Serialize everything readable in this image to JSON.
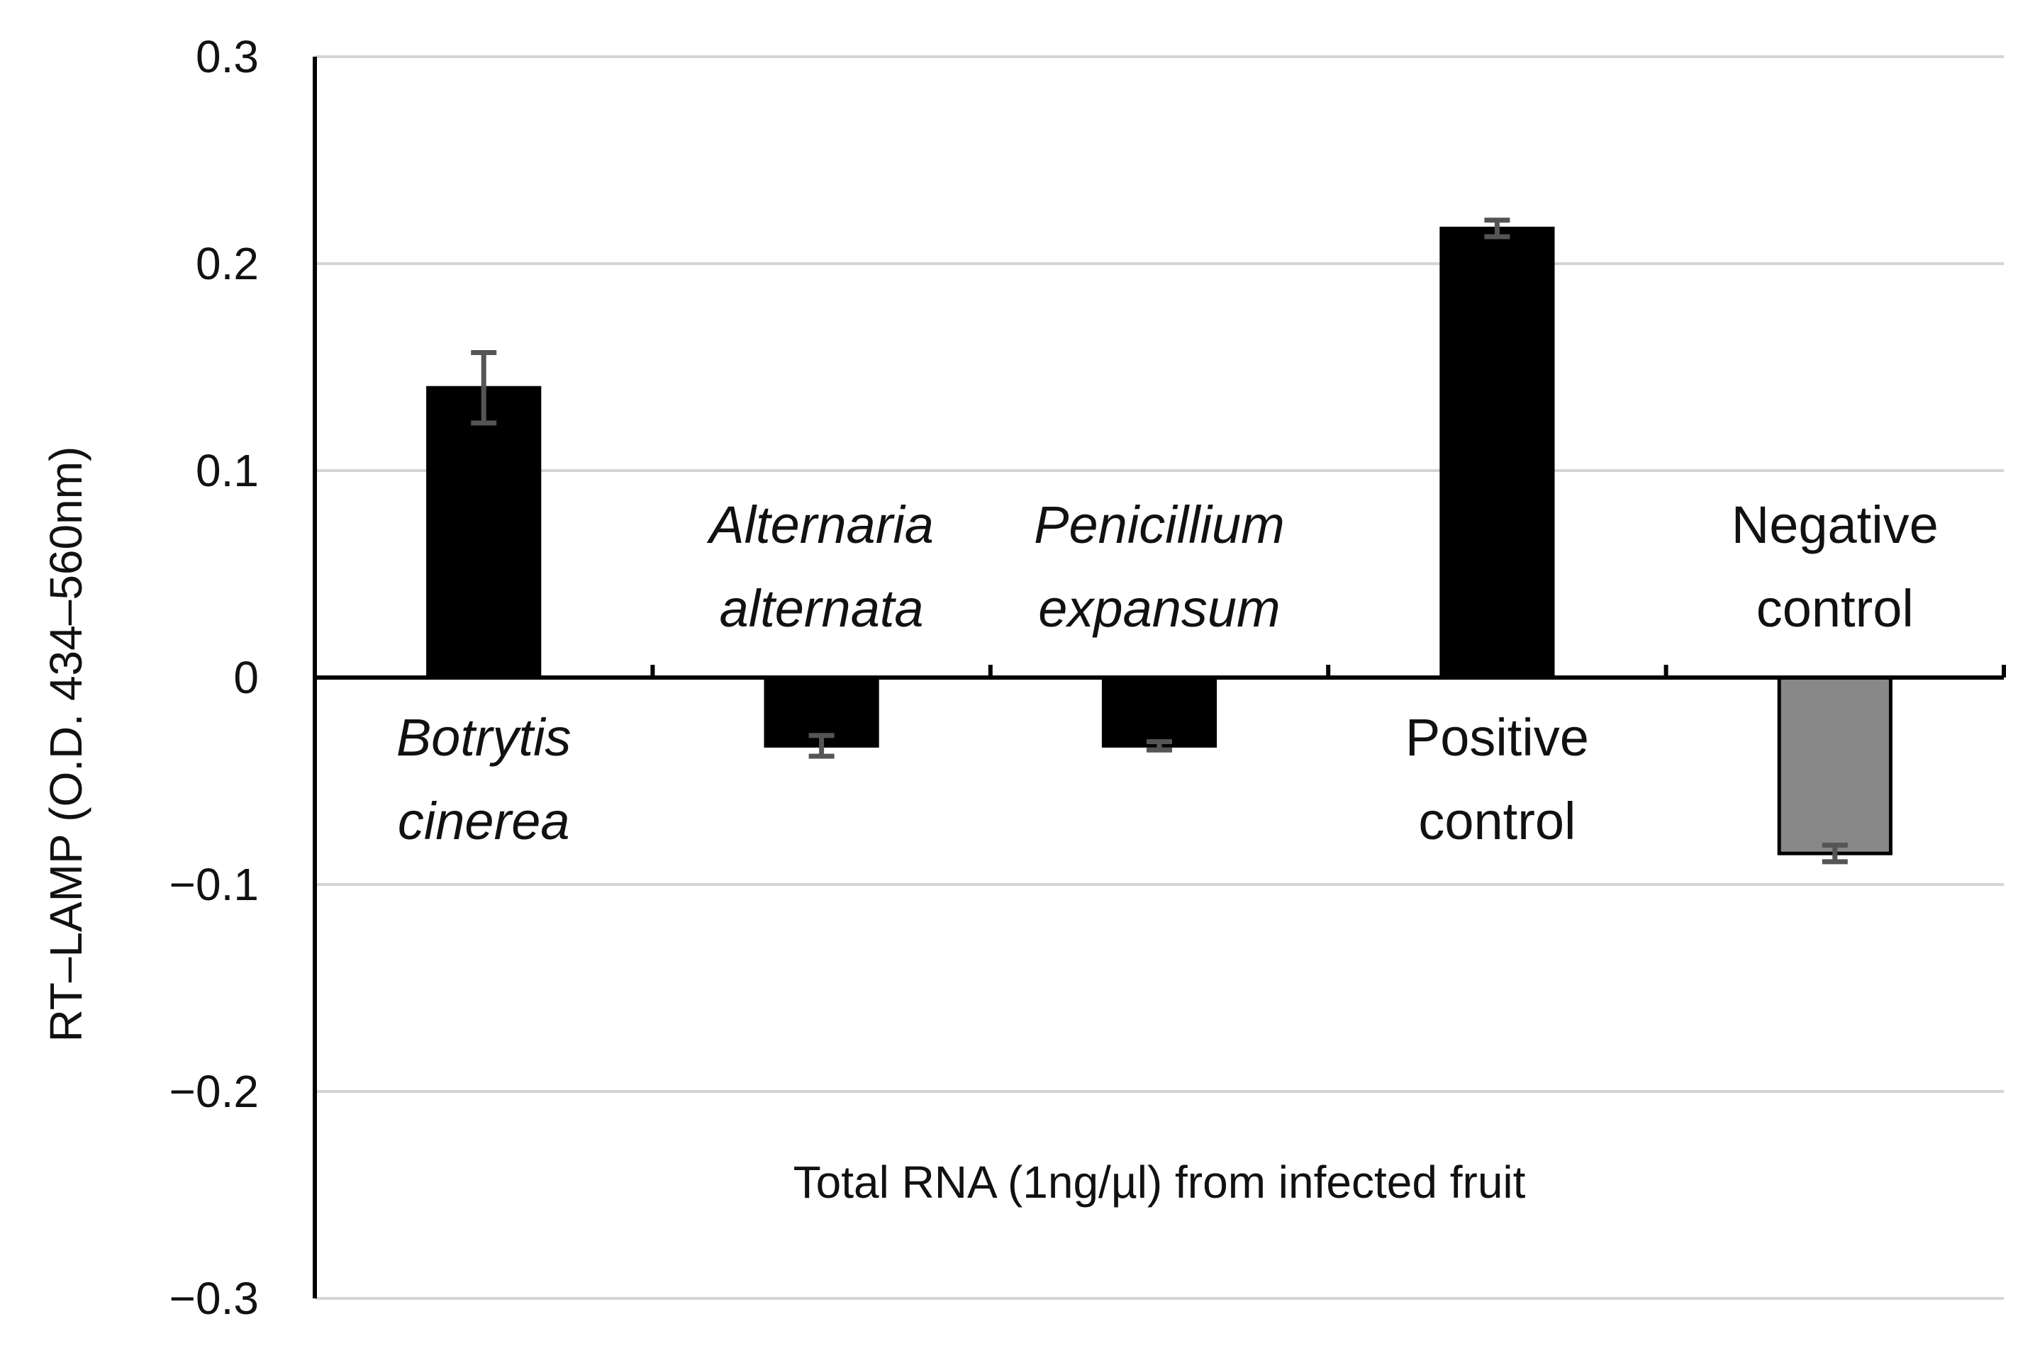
{
  "chart_data": {
    "type": "bar",
    "title": "",
    "xlabel": "Total RNA (1ng/µl) from infected fruit",
    "ylabel": "RT–LAMP (O.D. 434–560nm)",
    "ylim": [
      -0.3,
      0.3
    ],
    "yticks": [
      {
        "value": 0.3,
        "label": "0.3"
      },
      {
        "value": 0.2,
        "label": "0.2"
      },
      {
        "value": 0.1,
        "label": "0.1"
      },
      {
        "value": 0,
        "label": "0"
      },
      {
        "value": -0.1,
        "label": "−0.1"
      },
      {
        "value": -0.2,
        "label": "−0.2"
      },
      {
        "value": -0.3,
        "label": "−0.3"
      }
    ],
    "grid": true,
    "categories": [
      {
        "lines": [
          "Botrytis",
          "cinerea"
        ],
        "italic": true
      },
      {
        "lines": [
          "Alternaria",
          "alternata"
        ],
        "italic": true
      },
      {
        "lines": [
          "Penicillium",
          "expansum"
        ],
        "italic": true
      },
      {
        "lines": [
          "Positive",
          "control"
        ],
        "italic": false
      },
      {
        "lines": [
          "Negative",
          "control"
        ],
        "italic": false
      }
    ],
    "values": [
      0.14,
      -0.033,
      -0.033,
      0.217,
      -0.085
    ],
    "errors": [
      0.017,
      0.005,
      0.002,
      0.004,
      0.004
    ],
    "colors": [
      "#000000",
      "#000000",
      "#000000",
      "#000000",
      "#888888"
    ]
  }
}
